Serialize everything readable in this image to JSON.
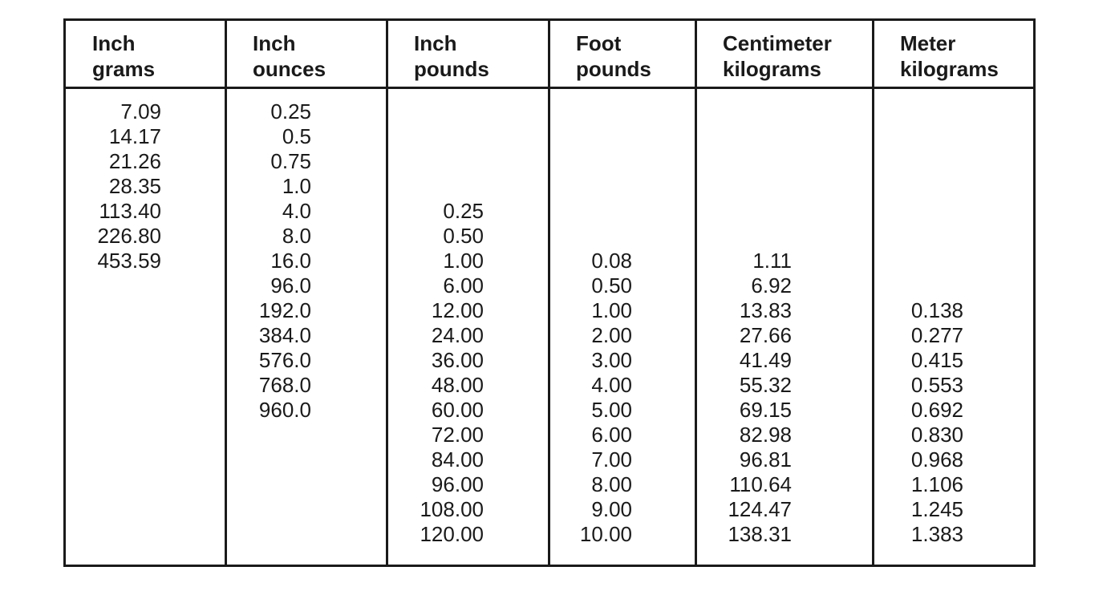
{
  "table": {
    "header": [
      [
        "Inch",
        "grams"
      ],
      [
        "Inch",
        "ounces"
      ],
      [
        "Inch",
        "pounds"
      ],
      [
        "Foot",
        "pounds"
      ],
      [
        "Centimeter",
        "kilograms"
      ],
      [
        "Meter",
        "kilograms"
      ]
    ],
    "rows": [
      [
        "7.09",
        "0.25",
        null,
        null,
        null,
        null
      ],
      [
        "14.17",
        "0.5",
        null,
        null,
        null,
        null
      ],
      [
        "21.26",
        "0.75",
        null,
        null,
        null,
        null
      ],
      [
        "28.35",
        "1.0",
        null,
        null,
        null,
        null
      ],
      [
        "113.40",
        "4.0",
        "0.25",
        null,
        null,
        null
      ],
      [
        "226.80",
        "8.0",
        "0.50",
        null,
        null,
        null
      ],
      [
        "453.59",
        "16.0",
        "1.00",
        "0.08",
        "1.11",
        null
      ],
      [
        null,
        "96.0",
        "6.00",
        "0.50",
        "6.92",
        null
      ],
      [
        null,
        "192.0",
        "12.00",
        "1.00",
        "13.83",
        "0.138"
      ],
      [
        null,
        "384.0",
        "24.00",
        "2.00",
        "27.66",
        "0.277"
      ],
      [
        null,
        "576.0",
        "36.00",
        "3.00",
        "41.49",
        "0.415"
      ],
      [
        null,
        "768.0",
        "48.00",
        "4.00",
        "55.32",
        "0.553"
      ],
      [
        null,
        "960.0",
        "60.00",
        "5.00",
        "69.15",
        "0.692"
      ],
      [
        null,
        null,
        "72.00",
        "6.00",
        "82.98",
        "0.830"
      ],
      [
        null,
        null,
        "84.00",
        "7.00",
        "96.81",
        "0.968"
      ],
      [
        null,
        null,
        "96.00",
        "8.00",
        "110.64",
        "1.106"
      ],
      [
        null,
        null,
        "108.00",
        "9.00",
        "124.47",
        "1.245"
      ],
      [
        null,
        null,
        "120.00",
        "10.00",
        "138.31",
        "1.383"
      ]
    ]
  }
}
